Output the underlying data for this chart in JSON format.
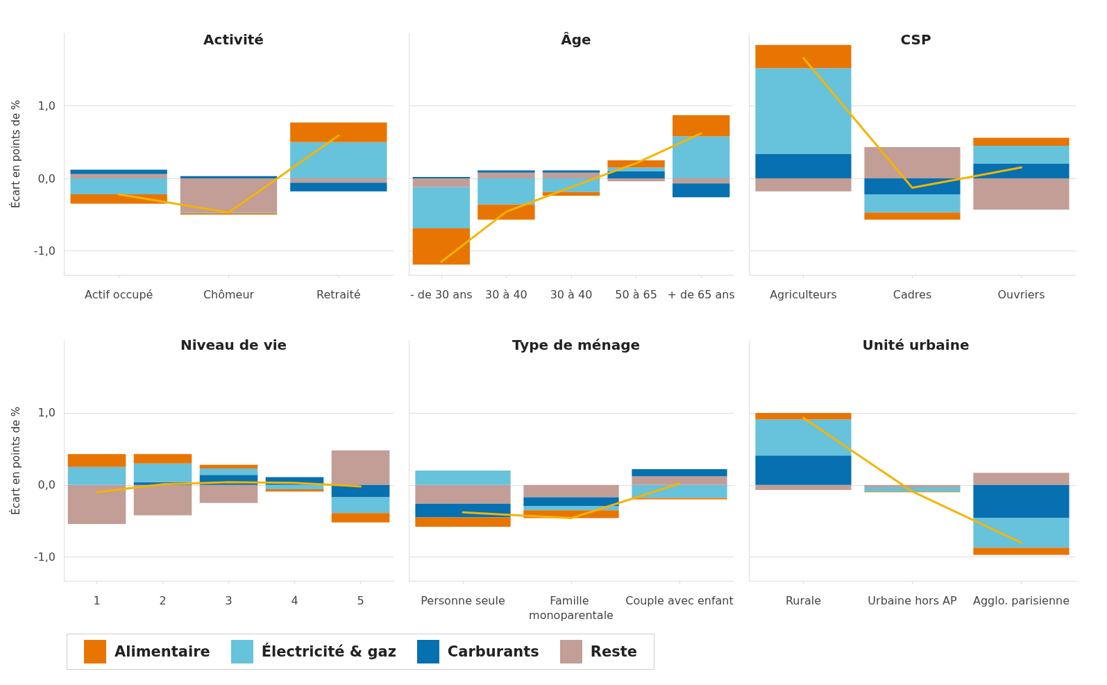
{
  "chart_data": [
    {
      "type": "bar",
      "title": "Activité",
      "ylabel": "Écart en points de %",
      "categories": [
        "Actif occupé",
        "Chômeur",
        "Retraité"
      ],
      "stacked": true,
      "ylim": [
        -1.33,
        2.0
      ],
      "yticks": [
        {
          "value": -1,
          "label": "-1,0"
        },
        {
          "value": 0,
          "label": "0,0"
        },
        {
          "value": 1,
          "label": "1,0"
        }
      ],
      "grid": "y",
      "legend": "bottom",
      "marker": "none",
      "line_style": "solid",
      "series": [
        {
          "name": "Reste",
          "color": "#c29e96",
          "values": [
            0.06,
            -0.47,
            -0.06
          ]
        },
        {
          "name": "Carburants",
          "color": "#0670b0",
          "values": [
            0.06,
            0.03,
            -0.12
          ]
        },
        {
          "name": "Électricité & gaz",
          "color": "#67c2dc",
          "values": [
            -0.22,
            -0.01,
            0.5
          ]
        },
        {
          "name": "Alimentaire",
          "color": "#e87502",
          "values": [
            -0.13,
            -0.02,
            0.27
          ]
        },
        {
          "type": "line",
          "color": "#f5b400",
          "values": [
            -0.22,
            -0.47,
            0.59
          ]
        }
      ]
    },
    {
      "type": "bar",
      "title": "Âge",
      "categories": [
        "- de 30 ans",
        "30 à 40",
        "30 à 40",
        "50 à 65",
        "+ de 65 ans"
      ],
      "stacked": true,
      "ylim": [
        -1.33,
        2.0
      ],
      "yticks": [
        {
          "value": -1,
          "label": "-1,0"
        },
        {
          "value": 0,
          "label": "0,0"
        },
        {
          "value": 1,
          "label": "1,0"
        }
      ],
      "grid": "y",
      "tick_labels": "x",
      "marker": "none",
      "line_style": "solid",
      "series": [
        {
          "color": "#c29e96",
          "values": [
            -0.12,
            0.08,
            0.08,
            -0.04,
            -0.07
          ]
        },
        {
          "color": "#0670b0",
          "values": [
            0.02,
            0.03,
            0.03,
            0.1,
            -0.19
          ]
        },
        {
          "color": "#67c2dc",
          "values": [
            -0.57,
            -0.36,
            -0.19,
            0.05,
            0.58
          ]
        },
        {
          "color": "#e87502",
          "values": [
            -0.5,
            -0.21,
            -0.05,
            0.1,
            0.29
          ]
        },
        {
          "type": "line",
          "color": "#f5b400",
          "values": [
            -1.15,
            -0.46,
            -0.12,
            0.21,
            0.62
          ]
        }
      ]
    },
    {
      "type": "bar",
      "title": "CSP",
      "categories": [
        "Agriculteurs",
        "Cadres",
        "Ouvriers"
      ],
      "stacked": true,
      "ylim": [
        -1.33,
        2.0
      ],
      "yticks": [
        {
          "value": -1,
          "label": "-1,0"
        },
        {
          "value": 0,
          "label": "0,0"
        },
        {
          "value": 1,
          "label": "1,0"
        }
      ],
      "grid": "y",
      "tick_labels": "x",
      "marker": "none",
      "line_style": "solid",
      "series": [
        {
          "color": "#c29e96",
          "values": [
            -0.18,
            0.43,
            -0.43
          ]
        },
        {
          "color": "#0670b0",
          "values": [
            0.34,
            -0.22,
            0.2
          ]
        },
        {
          "color": "#67c2dc",
          "values": [
            1.18,
            -0.25,
            0.25
          ]
        },
        {
          "color": "#e87502",
          "values": [
            0.32,
            -0.1,
            0.11
          ]
        },
        {
          "type": "line",
          "color": "#f5b400",
          "values": [
            1.66,
            -0.13,
            0.15
          ]
        }
      ]
    },
    {
      "type": "bar",
      "title": "Niveau de vie",
      "ylabel": "Écart en points de %",
      "categories": [
        "1",
        "2",
        "3",
        "4",
        "5"
      ],
      "stacked": true,
      "ylim": [
        -1.33,
        2.0
      ],
      "yticks": [
        {
          "value": -1,
          "label": "-1,0"
        },
        {
          "value": 0,
          "label": "0,0"
        },
        {
          "value": 1,
          "label": "1,0"
        }
      ],
      "grid": "y",
      "marker": "none",
      "line_style": "solid",
      "series": [
        {
          "color": "#c29e96",
          "values": [
            -0.54,
            -0.42,
            -0.25,
            0,
            0.48
          ]
        },
        {
          "color": "#0670b0",
          "values": [
            0,
            0.04,
            0.14,
            0.11,
            -0.17
          ]
        },
        {
          "color": "#67c2dc",
          "values": [
            0.25,
            0.26,
            0.09,
            -0.06,
            -0.22
          ]
        },
        {
          "color": "#e87502",
          "values": [
            0.18,
            0.13,
            0.05,
            -0.03,
            -0.13
          ]
        },
        {
          "type": "line",
          "color": "#f5b400",
          "values": [
            -0.1,
            0.01,
            0.04,
            0.03,
            -0.02
          ]
        }
      ]
    },
    {
      "type": "bar",
      "title": "Type de ménage",
      "categories": [
        "Personne seule",
        "Famille monoparentale",
        "Couple avec enfant"
      ],
      "stacked": true,
      "ylim": [
        -1.33,
        2.0
      ],
      "yticks": [
        {
          "value": -1,
          "label": "-1,0"
        },
        {
          "value": 0,
          "label": "0,0"
        },
        {
          "value": 1,
          "label": "1,0"
        }
      ],
      "grid": "y",
      "tick_labels": "x",
      "marker": "none",
      "line_style": "solid",
      "series": [
        {
          "color": "#c29e96",
          "values": [
            -0.26,
            -0.17,
            0.12
          ]
        },
        {
          "color": "#0670b0",
          "values": [
            -0.19,
            -0.12,
            0.1
          ]
        },
        {
          "color": "#67c2dc",
          "values": [
            0.2,
            -0.06,
            -0.18
          ]
        },
        {
          "color": "#e87502",
          "values": [
            -0.13,
            -0.11,
            -0.02
          ]
        },
        {
          "type": "line",
          "color": "#f5b400",
          "values": [
            -0.38,
            -0.46,
            0.02
          ]
        }
      ]
    },
    {
      "type": "bar",
      "title": "Unité urbaine",
      "categories": [
        "Rurale",
        "Urbaine hors AP",
        "Agglo. parisienne"
      ],
      "stacked": true,
      "ylim": [
        -1.33,
        2.0
      ],
      "yticks": [
        {
          "value": -1,
          "label": "-1,0"
        },
        {
          "value": 0,
          "label": "0,0"
        },
        {
          "value": 1,
          "label": "1,0"
        }
      ],
      "grid": "y",
      "tick_labels": "x",
      "marker": "none",
      "line_style": "solid",
      "series": [
        {
          "color": "#c29e96",
          "values": [
            -0.07,
            -0.03,
            0.17
          ]
        },
        {
          "color": "#0670b0",
          "values": [
            0.41,
            0,
            -0.46
          ]
        },
        {
          "color": "#67c2dc",
          "values": [
            0.5,
            -0.06,
            -0.41
          ]
        },
        {
          "color": "#e87502",
          "values": [
            0.09,
            -0.01,
            -0.1
          ]
        },
        {
          "type": "line",
          "color": "#f5b400",
          "values": [
            0.93,
            -0.09,
            -0.8
          ]
        }
      ]
    }
  ]
}
